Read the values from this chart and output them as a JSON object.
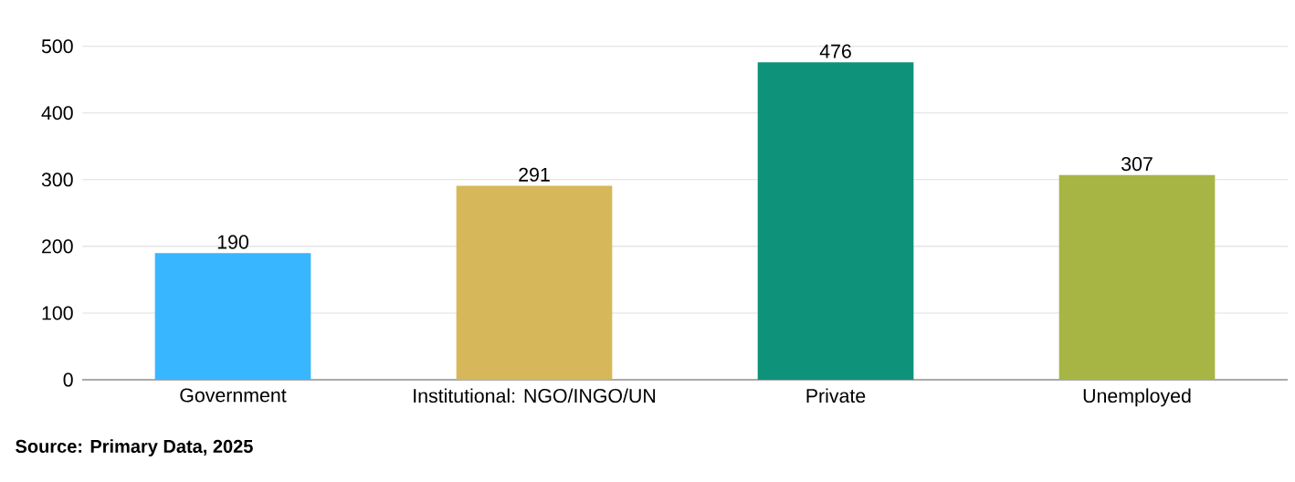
{
  "chart_data": {
    "type": "bar",
    "categories": [
      "Government",
      "Institutional: NGO/INGO/UN",
      "Private",
      "Unemployed"
    ],
    "values": [
      190,
      291,
      476,
      307
    ],
    "colors": [
      "#38b6ff",
      "#d6b85a",
      "#0e927a",
      "#a7b545"
    ],
    "ylim": [
      0,
      500
    ],
    "yticks": [
      0,
      100,
      200,
      300,
      400,
      500
    ],
    "grid": "y",
    "data_labels": true,
    "annotations": [
      "Source: Primary Data, 2025"
    ]
  }
}
